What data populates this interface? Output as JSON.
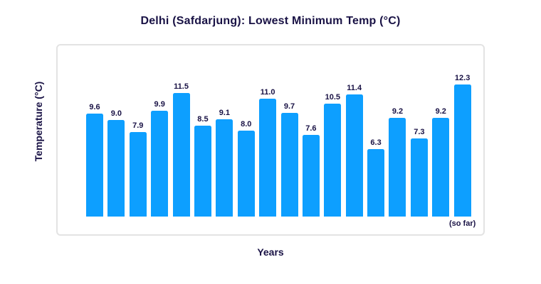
{
  "chart_data": {
    "type": "bar",
    "title": "Delhi (Safdarjung): Lowest Minimum Temp (°C)",
    "xlabel": "Years",
    "ylabel": "Temperature (°C)",
    "values": [
      9.6,
      9.0,
      7.9,
      9.9,
      11.5,
      8.5,
      9.1,
      8.0,
      11.0,
      9.7,
      7.6,
      10.5,
      11.4,
      6.3,
      9.2,
      7.3,
      9.2,
      12.3
    ],
    "bar_labels": [
      "9.6",
      "9.0",
      "7.9",
      "9.9",
      "11.5",
      "8.5",
      "9.1",
      "8.0",
      "11.0",
      "9.7",
      "7.6",
      "10.5",
      "11.4",
      "6.3",
      "9.2",
      "7.3",
      "9.2",
      "12.3"
    ],
    "annotation": {
      "text": "(so far)",
      "bar_index": 17
    },
    "x_tick_labels": [],
    "y_tick_labels": [],
    "ylim": [
      0,
      16
    ],
    "grid": false,
    "legend": false,
    "colors": {
      "bar": "#0d9fff",
      "text": "#191245",
      "frame": "#e3e3e3",
      "background": "#ffffff"
    }
  }
}
